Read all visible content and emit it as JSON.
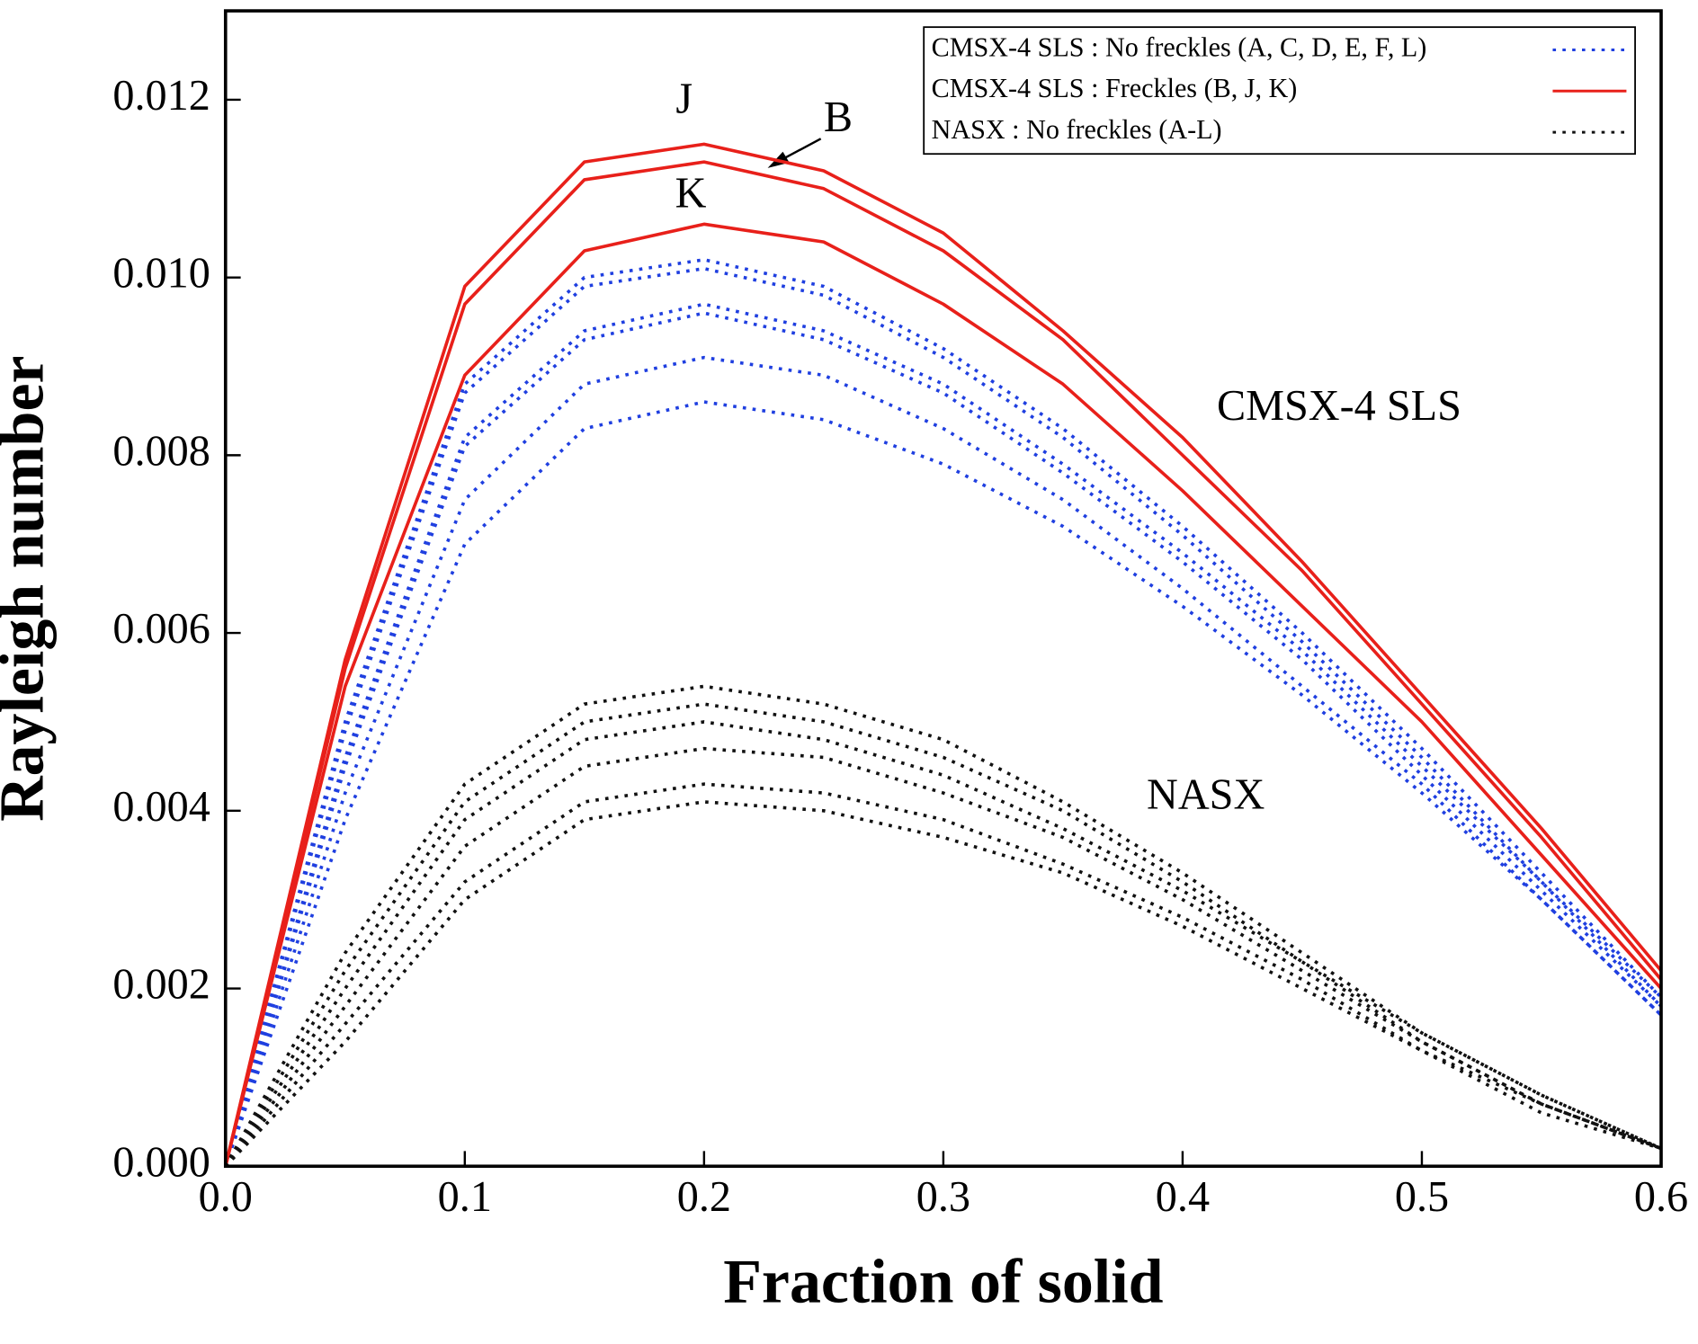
{
  "chart_data": {
    "type": "line",
    "xlabel": "Fraction of solid",
    "ylabel": "Rayleigh number",
    "x": [
      0,
      0.05,
      0.1,
      0.15,
      0.2,
      0.25,
      0.3,
      0.35,
      0.4,
      0.45,
      0.5,
      0.55,
      0.6
    ],
    "xlim": [
      0,
      0.6
    ],
    "ylim": [
      0,
      0.013
    ],
    "xticks": [
      {
        "value": 0,
        "label": "0.0"
      },
      0.1,
      0.2,
      0.3,
      0.4,
      0.5,
      0.6
    ],
    "yticks": [
      {
        "value": 0,
        "label": "0.000"
      },
      {
        "value": 0.002,
        "label": "0.002"
      },
      {
        "value": 0.004,
        "label": "0.004"
      },
      {
        "value": 0.006,
        "label": "0.006"
      },
      {
        "value": 0.008,
        "label": "0.008"
      },
      {
        "value": 0.01,
        "label": "0.010"
      },
      {
        "value": 0.012,
        "label": "0.012"
      }
    ],
    "annotations": [
      "J",
      "B",
      "K",
      "CMSX-4 SLS",
      "NASX"
    ],
    "series": [
      {
        "name": "CMSX-4 SLS : No freckles (A, C, D, E, F, L)",
        "color": "#1f3fe0",
        "style": "dotted",
        "lines": [
          [
            0,
            0.005,
            0.0088,
            0.01,
            0.0102,
            0.0099,
            0.0092,
            0.0083,
            0.0072,
            0.006,
            0.0047,
            0.0033,
            0.0019
          ],
          [
            0,
            0.0049,
            0.0087,
            0.0099,
            0.0101,
            0.0098,
            0.0091,
            0.0082,
            0.0071,
            0.0059,
            0.0046,
            0.0032,
            0.0019
          ],
          [
            0,
            0.0046,
            0.0082,
            0.0094,
            0.0097,
            0.0094,
            0.0088,
            0.0079,
            0.0069,
            0.0058,
            0.0045,
            0.0032,
            0.0018
          ],
          [
            0,
            0.0045,
            0.0081,
            0.0093,
            0.0096,
            0.0093,
            0.0087,
            0.0078,
            0.0068,
            0.0057,
            0.0044,
            0.0031,
            0.0018
          ],
          [
            0,
            0.0042,
            0.0075,
            0.0088,
            0.0091,
            0.0089,
            0.0083,
            0.0075,
            0.0065,
            0.0054,
            0.0043,
            0.003,
            0.0017
          ],
          [
            0,
            0.0039,
            0.007,
            0.0083,
            0.0086,
            0.0084,
            0.0079,
            0.0072,
            0.0063,
            0.0053,
            0.0042,
            0.003,
            0.0017
          ]
        ]
      },
      {
        "name": "CMSX-4 SLS : Freckles (B, J, K)",
        "color": "#e8201a",
        "style": "solid",
        "lines": [
          [
            0,
            0.0057,
            0.0099,
            0.0113,
            0.0115,
            0.0112,
            0.0105,
            0.0094,
            0.0082,
            0.0068,
            0.0053,
            0.0038,
            0.0022
          ],
          [
            0,
            0.0056,
            0.0097,
            0.0111,
            0.0113,
            0.011,
            0.0103,
            0.0093,
            0.008,
            0.0067,
            0.0052,
            0.0037,
            0.0021
          ],
          [
            0,
            0.0054,
            0.0089,
            0.0103,
            0.0106,
            0.0104,
            0.0097,
            0.0088,
            0.0076,
            0.0063,
            0.005,
            0.0035,
            0.002
          ]
        ]
      },
      {
        "name": "NASX : No freckles (A-L)",
        "color": "#111111",
        "style": "dotted",
        "lines": [
          [
            0,
            0.0024,
            0.0043,
            0.0052,
            0.0054,
            0.0052,
            0.0048,
            0.0041,
            0.0033,
            0.0024,
            0.0015,
            0.0008,
            0.0002
          ],
          [
            0,
            0.0022,
            0.0041,
            0.005,
            0.0052,
            0.005,
            0.0046,
            0.004,
            0.0032,
            0.0023,
            0.0015,
            0.0008,
            0.0002
          ],
          [
            0,
            0.002,
            0.0039,
            0.0048,
            0.005,
            0.0048,
            0.0044,
            0.0038,
            0.0031,
            0.0023,
            0.0014,
            0.0007,
            0.0002
          ],
          [
            0,
            0.0018,
            0.0036,
            0.0045,
            0.0047,
            0.0046,
            0.0042,
            0.0037,
            0.003,
            0.0022,
            0.0014,
            0.0007,
            0.0002
          ],
          [
            0,
            0.0016,
            0.0032,
            0.0041,
            0.0043,
            0.0042,
            0.0039,
            0.0034,
            0.0028,
            0.0021,
            0.0013,
            0.0007,
            0.0002
          ],
          [
            0,
            0.0014,
            0.003,
            0.0039,
            0.0041,
            0.004,
            0.0037,
            0.0033,
            0.0027,
            0.002,
            0.0013,
            0.0006,
            0.0002
          ]
        ]
      }
    ]
  }
}
